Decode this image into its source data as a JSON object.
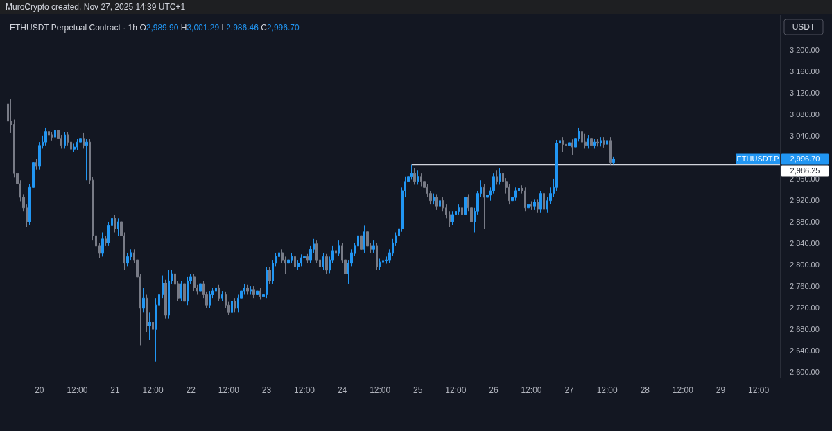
{
  "chart_data": {
    "type": "candlestick",
    "title": "ETHUSDT Perpetual Contract · 1h",
    "ylabel": "USDT",
    "annotations": [
      "MuroCrypto created, Nov 27, 2025 14:39 UTC+1",
      "O2,989.90",
      "H3,001.29",
      "L2,986.46",
      "C2,996.70",
      "ETHUSDT.P",
      "2,996.70",
      "2,986.25"
    ],
    "xlim": [
      "2025-11-19T11:30",
      "2025-11-29T18:48"
    ],
    "xticks": [
      {
        "value": "2025-11-20T00:00",
        "label": "20"
      },
      {
        "value": "2025-11-20T12:00",
        "label": "12:00"
      },
      {
        "value": "2025-11-21T00:00",
        "label": "21"
      },
      {
        "value": "2025-11-21T12:00",
        "label": "12:00"
      },
      {
        "value": "2025-11-22T00:00",
        "label": "22"
      },
      {
        "value": "2025-11-22T12:00",
        "label": "12:00"
      },
      {
        "value": "2025-11-23T00:00",
        "label": "23"
      },
      {
        "value": "2025-11-23T12:00",
        "label": "12:00"
      },
      {
        "value": "2025-11-24T00:00",
        "label": "24"
      },
      {
        "value": "2025-11-24T12:00",
        "label": "12:00"
      },
      {
        "value": "2025-11-25T00:00",
        "label": "25"
      },
      {
        "value": "2025-11-25T12:00",
        "label": "12:00"
      },
      {
        "value": "2025-11-26T00:00",
        "label": "26"
      },
      {
        "value": "2025-11-26T12:00",
        "label": "12:00"
      },
      {
        "value": "2025-11-27T00:00",
        "label": "27"
      },
      {
        "value": "2025-11-27T12:00",
        "label": "12:00"
      },
      {
        "value": "2025-11-28T00:00",
        "label": "28"
      },
      {
        "value": "2025-11-28T12:00",
        "label": "12:00"
      },
      {
        "value": "2025-11-29T00:00",
        "label": "29"
      },
      {
        "value": "2025-11-29T12:00",
        "label": "12:00"
      }
    ],
    "ylim": [
      2590,
      3264
    ],
    "yticks": [
      {
        "value": 2600,
        "label": "2,600.00"
      },
      {
        "value": 2640,
        "label": "2,640.00"
      },
      {
        "value": 2680,
        "label": "2,680.00"
      },
      {
        "value": 2720,
        "label": "2,720.00"
      },
      {
        "value": 2760,
        "label": "2,760.00"
      },
      {
        "value": 2800,
        "label": "2,800.00"
      },
      {
        "value": 2840,
        "label": "2,840.00"
      },
      {
        "value": 2880,
        "label": "2,880.00"
      },
      {
        "value": 2920,
        "label": "2,920.00"
      },
      {
        "value": 2960,
        "label": "2,960.00"
      },
      {
        "value": 3040,
        "label": "3,040.00"
      },
      {
        "value": 3080,
        "label": "3,080.00"
      },
      {
        "value": 3120,
        "label": "3,120.00"
      },
      {
        "value": 3160,
        "label": "3,160.00"
      },
      {
        "value": 3200,
        "label": "3,200.00"
      }
    ],
    "series": [
      {
        "type": "candlestick",
        "x": [
          "2025-11-19T14:00",
          "2025-11-19T15:00",
          "2025-11-19T16:00",
          "2025-11-19T17:00",
          "2025-11-19T18:00",
          "2025-11-19T19:00",
          "2025-11-19T20:00",
          "2025-11-19T21:00",
          "2025-11-19T22:00",
          "2025-11-19T23:00",
          "2025-11-20T00:00",
          "2025-11-20T01:00",
          "2025-11-20T02:00",
          "2025-11-20T03:00",
          "2025-11-20T04:00",
          "2025-11-20T05:00",
          "2025-11-20T06:00",
          "2025-11-20T07:00",
          "2025-11-20T08:00",
          "2025-11-20T09:00",
          "2025-11-20T10:00",
          "2025-11-20T11:00",
          "2025-11-20T12:00",
          "2025-11-20T13:00",
          "2025-11-20T14:00",
          "2025-11-20T15:00",
          "2025-11-20T16:00",
          "2025-11-20T17:00",
          "2025-11-20T18:00",
          "2025-11-20T19:00",
          "2025-11-20T20:00",
          "2025-11-20T21:00",
          "2025-11-20T22:00",
          "2025-11-20T23:00",
          "2025-11-21T00:00",
          "2025-11-21T01:00",
          "2025-11-21T02:00",
          "2025-11-21T03:00",
          "2025-11-21T04:00",
          "2025-11-21T05:00",
          "2025-11-21T06:00",
          "2025-11-21T07:00",
          "2025-11-21T08:00",
          "2025-11-21T09:00",
          "2025-11-21T10:00",
          "2025-11-21T11:00",
          "2025-11-21T12:00",
          "2025-11-21T13:00",
          "2025-11-21T14:00",
          "2025-11-21T15:00",
          "2025-11-21T16:00",
          "2025-11-21T17:00",
          "2025-11-21T18:00",
          "2025-11-21T19:00",
          "2025-11-21T20:00",
          "2025-11-21T21:00",
          "2025-11-21T22:00",
          "2025-11-21T23:00",
          "2025-11-22T00:00",
          "2025-11-22T01:00",
          "2025-11-22T02:00",
          "2025-11-22T03:00",
          "2025-11-22T04:00",
          "2025-11-22T05:00",
          "2025-11-22T06:00",
          "2025-11-22T07:00",
          "2025-11-22T08:00",
          "2025-11-22T09:00",
          "2025-11-22T10:00",
          "2025-11-22T11:00",
          "2025-11-22T12:00",
          "2025-11-22T13:00",
          "2025-11-22T14:00",
          "2025-11-22T15:00",
          "2025-11-22T16:00",
          "2025-11-22T17:00",
          "2025-11-22T18:00",
          "2025-11-22T19:00",
          "2025-11-22T20:00",
          "2025-11-22T21:00",
          "2025-11-22T22:00",
          "2025-11-22T23:00",
          "2025-11-23T00:00",
          "2025-11-23T01:00",
          "2025-11-23T02:00",
          "2025-11-23T03:00",
          "2025-11-23T04:00",
          "2025-11-23T05:00",
          "2025-11-23T06:00",
          "2025-11-23T07:00",
          "2025-11-23T08:00",
          "2025-11-23T09:00",
          "2025-11-23T10:00",
          "2025-11-23T11:00",
          "2025-11-23T12:00",
          "2025-11-23T13:00",
          "2025-11-23T14:00",
          "2025-11-23T15:00",
          "2025-11-23T16:00",
          "2025-11-23T17:00",
          "2025-11-23T18:00",
          "2025-11-23T19:00",
          "2025-11-23T20:00",
          "2025-11-23T21:00",
          "2025-11-23T22:00",
          "2025-11-23T23:00",
          "2025-11-24T00:00",
          "2025-11-24T01:00",
          "2025-11-24T02:00",
          "2025-11-24T03:00",
          "2025-11-24T04:00",
          "2025-11-24T05:00",
          "2025-11-24T06:00",
          "2025-11-24T07:00",
          "2025-11-24T08:00",
          "2025-11-24T09:00",
          "2025-11-24T10:00",
          "2025-11-24T11:00",
          "2025-11-24T12:00",
          "2025-11-24T13:00",
          "2025-11-24T14:00",
          "2025-11-24T15:00",
          "2025-11-24T16:00",
          "2025-11-24T17:00",
          "2025-11-24T18:00",
          "2025-11-24T19:00",
          "2025-11-24T20:00",
          "2025-11-24T21:00",
          "2025-11-24T22:00",
          "2025-11-24T23:00",
          "2025-11-25T00:00",
          "2025-11-25T01:00",
          "2025-11-25T02:00",
          "2025-11-25T03:00",
          "2025-11-25T04:00",
          "2025-11-25T05:00",
          "2025-11-25T06:00",
          "2025-11-25T07:00",
          "2025-11-25T08:00",
          "2025-11-25T09:00",
          "2025-11-25T10:00",
          "2025-11-25T11:00",
          "2025-11-25T12:00",
          "2025-11-25T13:00",
          "2025-11-25T14:00",
          "2025-11-25T15:00",
          "2025-11-25T16:00",
          "2025-11-25T17:00",
          "2025-11-25T18:00",
          "2025-11-25T19:00",
          "2025-11-25T20:00",
          "2025-11-25T21:00",
          "2025-11-25T22:00",
          "2025-11-25T23:00",
          "2025-11-26T00:00",
          "2025-11-26T01:00",
          "2025-11-26T02:00",
          "2025-11-26T03:00",
          "2025-11-26T04:00",
          "2025-11-26T05:00",
          "2025-11-26T06:00",
          "2025-11-26T07:00",
          "2025-11-26T08:00",
          "2025-11-26T09:00",
          "2025-11-26T10:00",
          "2025-11-26T11:00",
          "2025-11-26T12:00",
          "2025-11-26T13:00",
          "2025-11-26T14:00",
          "2025-11-26T15:00",
          "2025-11-26T16:00",
          "2025-11-26T17:00",
          "2025-11-26T18:00",
          "2025-11-26T19:00",
          "2025-11-26T20:00",
          "2025-11-26T21:00",
          "2025-11-26T22:00",
          "2025-11-26T23:00",
          "2025-11-27T00:00",
          "2025-11-27T01:00",
          "2025-11-27T02:00",
          "2025-11-27T03:00",
          "2025-11-27T04:00",
          "2025-11-27T05:00",
          "2025-11-27T06:00",
          "2025-11-27T07:00",
          "2025-11-27T08:00",
          "2025-11-27T09:00",
          "2025-11-27T10:00",
          "2025-11-27T11:00",
          "2025-11-27T12:00",
          "2025-11-27T13:00",
          "2025-11-27T14:00"
        ],
        "ohlc": [
          [
            3099,
            3104,
            3060,
            3067
          ],
          [
            3067,
            3108,
            3045,
            3061
          ],
          [
            3061,
            3070,
            2962,
            2970
          ],
          [
            2970,
            2976,
            2945,
            2951
          ],
          [
            2951,
            2957,
            2918,
            2925
          ],
          [
            2925,
            2931,
            2899,
            2906
          ],
          [
            2906,
            2912,
            2870,
            2880
          ],
          [
            2880,
            2950,
            2874,
            2944
          ],
          [
            2944,
            2998,
            2938,
            2990
          ],
          [
            2990,
            2996,
            2977,
            2983
          ],
          [
            2983,
            3028,
            2977,
            3022
          ],
          [
            3022,
            3040,
            3016,
            3028
          ],
          [
            3028,
            3054,
            3022,
            3048
          ],
          [
            3048,
            3054,
            3035,
            3041
          ],
          [
            3041,
            3047,
            3031,
            3037
          ],
          [
            3037,
            3058,
            3031,
            3050
          ],
          [
            3050,
            3056,
            3029,
            3035
          ],
          [
            3035,
            3041,
            3016,
            3022
          ],
          [
            3022,
            3047,
            3016,
            3041
          ],
          [
            3041,
            3047,
            3022,
            3028
          ],
          [
            3028,
            3034,
            3005,
            3015
          ],
          [
            3015,
            3025,
            3009,
            3019
          ],
          [
            3019,
            3034,
            3013,
            3028
          ],
          [
            3028,
            3041,
            3022,
            3035
          ],
          [
            3035,
            3045,
            3016,
            3022
          ],
          [
            3022,
            3034,
            2957,
            3028
          ],
          [
            3028,
            3034,
            2950,
            2957
          ],
          [
            2957,
            2963,
            2845,
            2854
          ],
          [
            2854,
            2860,
            2825,
            2835
          ],
          [
            2835,
            2841,
            2812,
            2822
          ],
          [
            2822,
            2860,
            2815,
            2848
          ],
          [
            2848,
            2854,
            2835,
            2841
          ],
          [
            2841,
            2880,
            2835,
            2873
          ],
          [
            2873,
            2895,
            2867,
            2886
          ],
          [
            2886,
            2892,
            2860,
            2867
          ],
          [
            2867,
            2886,
            2854,
            2880
          ],
          [
            2880,
            2886,
            2848,
            2854
          ],
          [
            2854,
            2860,
            2790,
            2803
          ],
          [
            2803,
            2822,
            2797,
            2815
          ],
          [
            2815,
            2828,
            2809,
            2822
          ],
          [
            2822,
            2828,
            2803,
            2809
          ],
          [
            2809,
            2815,
            2770,
            2777
          ],
          [
            2777,
            2783,
            2650,
            2719
          ],
          [
            2719,
            2757,
            2712,
            2738
          ],
          [
            2738,
            2744,
            2675,
            2686
          ],
          [
            2686,
            2712,
            2660,
            2693
          ],
          [
            2693,
            2699,
            2670,
            2680
          ],
          [
            2680,
            2738,
            2620,
            2725
          ],
          [
            2725,
            2751,
            2690,
            2744
          ],
          [
            2744,
            2780,
            2738,
            2766
          ],
          [
            2766,
            2772,
            2700,
            2706
          ],
          [
            2706,
            2790,
            2700,
            2770
          ],
          [
            2770,
            2790,
            2764,
            2783
          ],
          [
            2783,
            2789,
            2757,
            2764
          ],
          [
            2764,
            2770,
            2732,
            2738
          ],
          [
            2738,
            2770,
            2732,
            2764
          ],
          [
            2764,
            2770,
            2725,
            2732
          ],
          [
            2732,
            2777,
            2725,
            2770
          ],
          [
            2770,
            2783,
            2764,
            2777
          ],
          [
            2777,
            2783,
            2751,
            2757
          ],
          [
            2757,
            2763,
            2744,
            2751
          ],
          [
            2751,
            2770,
            2744,
            2764
          ],
          [
            2764,
            2770,
            2738,
            2744
          ],
          [
            2744,
            2750,
            2719,
            2725
          ],
          [
            2725,
            2751,
            2719,
            2744
          ],
          [
            2744,
            2757,
            2738,
            2751
          ],
          [
            2751,
            2764,
            2744,
            2757
          ],
          [
            2757,
            2763,
            2732,
            2738
          ],
          [
            2738,
            2751,
            2732,
            2744
          ],
          [
            2744,
            2750,
            2719,
            2725
          ],
          [
            2725,
            2731,
            2706,
            2712
          ],
          [
            2712,
            2738,
            2706,
            2732
          ],
          [
            2732,
            2738,
            2712,
            2719
          ],
          [
            2719,
            2744,
            2712,
            2738
          ],
          [
            2738,
            2757,
            2732,
            2751
          ],
          [
            2751,
            2764,
            2744,
            2757
          ],
          [
            2757,
            2763,
            2744,
            2751
          ],
          [
            2751,
            2760,
            2744,
            2754
          ],
          [
            2754,
            2760,
            2738,
            2744
          ],
          [
            2744,
            2757,
            2738,
            2751
          ],
          [
            2751,
            2757,
            2735,
            2741
          ],
          [
            2741,
            2751,
            2735,
            2744
          ],
          [
            2744,
            2796,
            2738,
            2790
          ],
          [
            2790,
            2796,
            2764,
            2770
          ],
          [
            2770,
            2809,
            2764,
            2803
          ],
          [
            2803,
            2822,
            2797,
            2815
          ],
          [
            2815,
            2835,
            2809,
            2822
          ],
          [
            2822,
            2828,
            2803,
            2809
          ],
          [
            2809,
            2815,
            2783,
            2803
          ],
          [
            2803,
            2815,
            2797,
            2809
          ],
          [
            2809,
            2822,
            2803,
            2815
          ],
          [
            2815,
            2822,
            2790,
            2796
          ],
          [
            2796,
            2809,
            2790,
            2803
          ],
          [
            2803,
            2819,
            2797,
            2813
          ],
          [
            2813,
            2822,
            2807,
            2815
          ],
          [
            2815,
            2821,
            2803,
            2809
          ],
          [
            2809,
            2835,
            2803,
            2828
          ],
          [
            2828,
            2848,
            2822,
            2839
          ],
          [
            2839,
            2845,
            2803,
            2809
          ],
          [
            2809,
            2815,
            2790,
            2796
          ],
          [
            2796,
            2822,
            2790,
            2815
          ],
          [
            2815,
            2821,
            2783,
            2790
          ],
          [
            2790,
            2815,
            2784,
            2809
          ],
          [
            2809,
            2835,
            2803,
            2826
          ],
          [
            2826,
            2841,
            2816,
            2822
          ],
          [
            2822,
            2845,
            2816,
            2835
          ],
          [
            2835,
            2841,
            2803,
            2809
          ],
          [
            2809,
            2815,
            2777,
            2783
          ],
          [
            2783,
            2809,
            2764,
            2803
          ],
          [
            2803,
            2828,
            2797,
            2822
          ],
          [
            2822,
            2841,
            2816,
            2835
          ],
          [
            2835,
            2861,
            2829,
            2854
          ],
          [
            2854,
            2860,
            2822,
            2828
          ],
          [
            2828,
            2873,
            2822,
            2861
          ],
          [
            2861,
            2867,
            2829,
            2835
          ],
          [
            2835,
            2841,
            2822,
            2828
          ],
          [
            2828,
            2845,
            2822,
            2835
          ],
          [
            2835,
            2841,
            2790,
            2796
          ],
          [
            2796,
            2811,
            2790,
            2805
          ],
          [
            2805,
            2814,
            2799,
            2808
          ],
          [
            2808,
            2815,
            2802,
            2809
          ],
          [
            2809,
            2828,
            2803,
            2822
          ],
          [
            2822,
            2848,
            2816,
            2841
          ],
          [
            2841,
            2860,
            2835,
            2854
          ],
          [
            2854,
            2880,
            2848,
            2867
          ],
          [
            2867,
            2944,
            2861,
            2938
          ],
          [
            2938,
            2964,
            2925,
            2955
          ],
          [
            2955,
            2975,
            2949,
            2964
          ],
          [
            2964,
            2986,
            2958,
            2970
          ],
          [
            2970,
            2980,
            2949,
            2955
          ],
          [
            2955,
            2975,
            2949,
            2964
          ],
          [
            2964,
            2970,
            2945,
            2955
          ],
          [
            2955,
            2961,
            2938,
            2944
          ],
          [
            2944,
            2950,
            2925,
            2932
          ],
          [
            2932,
            2938,
            2912,
            2919
          ],
          [
            2919,
            2932,
            2912,
            2925
          ],
          [
            2925,
            2931,
            2902,
            2908
          ],
          [
            2908,
            2925,
            2902,
            2919
          ],
          [
            2919,
            2925,
            2899,
            2906
          ],
          [
            2906,
            2912,
            2886,
            2893
          ],
          [
            2893,
            2899,
            2870,
            2880
          ],
          [
            2880,
            2899,
            2874,
            2893
          ],
          [
            2893,
            2906,
            2887,
            2899
          ],
          [
            2899,
            2912,
            2893,
            2906
          ],
          [
            2906,
            2912,
            2880,
            2893
          ],
          [
            2893,
            2932,
            2887,
            2925
          ],
          [
            2925,
            2931,
            2899,
            2906
          ],
          [
            2906,
            2912,
            2858,
            2880
          ],
          [
            2880,
            2906,
            2860,
            2899
          ],
          [
            2899,
            2938,
            2893,
            2932
          ],
          [
            2932,
            2957,
            2926,
            2944
          ],
          [
            2944,
            2950,
            2867,
            2925
          ],
          [
            2925,
            2935,
            2919,
            2929
          ],
          [
            2929,
            2944,
            2919,
            2938
          ],
          [
            2938,
            2970,
            2932,
            2964
          ],
          [
            2964,
            2975,
            2949,
            2955
          ],
          [
            2955,
            2980,
            2949,
            2970
          ],
          [
            2970,
            2976,
            2949,
            2955
          ],
          [
            2955,
            2961,
            2932,
            2944
          ],
          [
            2944,
            2950,
            2912,
            2919
          ],
          [
            2919,
            2932,
            2912,
            2925
          ],
          [
            2925,
            2944,
            2919,
            2938
          ],
          [
            2938,
            2948,
            2932,
            2942
          ],
          [
            2942,
            2948,
            2932,
            2938
          ],
          [
            2938,
            2944,
            2899,
            2906
          ],
          [
            2906,
            2919,
            2900,
            2912
          ],
          [
            2912,
            2918,
            2902,
            2908
          ],
          [
            2908,
            2922,
            2902,
            2916
          ],
          [
            2916,
            2922,
            2897,
            2903
          ],
          [
            2903,
            2938,
            2897,
            2932
          ],
          [
            2932,
            2938,
            2897,
            2903
          ],
          [
            2903,
            2925,
            2897,
            2919
          ],
          [
            2919,
            2944,
            2913,
            2932
          ],
          [
            2932,
            2960,
            2926,
            2944
          ],
          [
            2944,
            3032,
            2938,
            3026
          ],
          [
            3026,
            3041,
            3020,
            3031
          ],
          [
            3031,
            3037,
            3010,
            3024
          ],
          [
            3024,
            3030,
            3015,
            3022
          ],
          [
            3022,
            3033,
            3016,
            3027
          ],
          [
            3027,
            3033,
            3005,
            3019
          ],
          [
            3019,
            3044,
            3013,
            3035
          ],
          [
            3035,
            3054,
            3029,
            3048
          ],
          [
            3048,
            3065,
            3022,
            3028
          ],
          [
            3028,
            3044,
            3016,
            3022
          ],
          [
            3022,
            3041,
            3016,
            3035
          ],
          [
            3035,
            3041,
            3016,
            3022
          ],
          [
            3022,
            3034,
            3016,
            3028
          ],
          [
            3028,
            3034,
            3020,
            3026
          ],
          [
            3026,
            3037,
            3020,
            3031
          ],
          [
            3031,
            3037,
            3018,
            3024
          ],
          [
            3024,
            3037,
            3018,
            3031
          ],
          [
            3031,
            3037,
            2986,
            2989.9
          ],
          [
            2989.9,
            3001.29,
            2986.46,
            2996.7
          ]
        ],
        "colors": [
          "#787b86",
          "#787b86",
          "#787b86",
          "#787b86",
          "#787b86",
          "#787b86",
          "#787b86",
          "#2196f3",
          "#2196f3",
          "#787b86",
          "#2196f3",
          "#2196f3",
          "#2196f3",
          "#787b86",
          "#787b86",
          "#2196f3",
          "#787b86",
          "#787b86",
          "#2196f3",
          "#787b86",
          "#787b86",
          "#2196f3",
          "#2196f3",
          "#2196f3",
          "#787b86",
          "#2196f3",
          "#787b86",
          "#787b86",
          "#787b86",
          "#787b86",
          "#2196f3",
          "#787b86",
          "#2196f3",
          "#2196f3",
          "#787b86",
          "#2196f3",
          "#787b86",
          "#787b86",
          "#2196f3",
          "#2196f3",
          "#787b86",
          "#787b86",
          "#787b86",
          "#2196f3",
          "#787b86",
          "#2196f3",
          "#787b86",
          "#2196f3",
          "#2196f3",
          "#2196f3",
          "#787b86",
          "#2196f3",
          "#2196f3",
          "#787b86",
          "#787b86",
          "#2196f3",
          "#787b86",
          "#2196f3",
          "#2196f3",
          "#787b86",
          "#787b86",
          "#2196f3",
          "#787b86",
          "#787b86",
          "#2196f3",
          "#2196f3",
          "#2196f3",
          "#787b86",
          "#2196f3",
          "#787b86",
          "#787b86",
          "#2196f3",
          "#787b86",
          "#2196f3",
          "#2196f3",
          "#2196f3",
          "#787b86",
          "#2196f3",
          "#787b86",
          "#2196f3",
          "#787b86",
          "#2196f3",
          "#2196f3",
          "#787b86",
          "#2196f3",
          "#2196f3",
          "#2196f3",
          "#787b86",
          "#787b86",
          "#2196f3",
          "#2196f3",
          "#787b86",
          "#2196f3",
          "#2196f3",
          "#2196f3",
          "#787b86",
          "#2196f3",
          "#2196f3",
          "#787b86",
          "#787b86",
          "#2196f3",
          "#787b86",
          "#2196f3",
          "#2196f3",
          "#787b86",
          "#2196f3",
          "#787b86",
          "#787b86",
          "#2196f3",
          "#2196f3",
          "#2196f3",
          "#2196f3",
          "#787b86",
          "#2196f3",
          "#787b86",
          "#787b86",
          "#2196f3",
          "#787b86",
          "#2196f3",
          "#2196f3",
          "#2196f3",
          "#2196f3",
          "#2196f3",
          "#2196f3",
          "#2196f3",
          "#2196f3",
          "#2196f3",
          "#2196f3",
          "#2196f3",
          "#787b86",
          "#2196f3",
          "#787b86",
          "#787b86",
          "#787b86",
          "#787b86",
          "#2196f3",
          "#787b86",
          "#2196f3",
          "#787b86",
          "#787b86",
          "#787b86",
          "#2196f3",
          "#2196f3",
          "#2196f3",
          "#787b86",
          "#2196f3",
          "#787b86",
          "#787b86",
          "#2196f3",
          "#2196f3",
          "#2196f3",
          "#787b86",
          "#2196f3",
          "#2196f3",
          "#2196f3",
          "#787b86",
          "#2196f3",
          "#787b86",
          "#787b86",
          "#787b86",
          "#2196f3",
          "#2196f3",
          "#2196f3",
          "#787b86",
          "#787b86",
          "#2196f3",
          "#787b86",
          "#2196f3",
          "#787b86",
          "#2196f3",
          "#787b86",
          "#2196f3",
          "#2196f3",
          "#2196f3",
          "#2196f3",
          "#2196f3",
          "#787b86",
          "#787b86",
          "#2196f3",
          "#787b86",
          "#2196f3",
          "#2196f3",
          "#787b86",
          "#787b86",
          "#2196f3",
          "#787b86",
          "#2196f3",
          "#787b86",
          "#2196f3",
          "#787b86",
          "#2196f3",
          "#787b86",
          "#2196f3"
        ]
      },
      {
        "type": "line",
        "x": [
          "2025-11-24T22:00",
          "2025-11-29T18:48"
        ],
        "values": [
          2986.25,
          2986.25
        ],
        "color": "#d1d4dc"
      }
    ]
  }
}
